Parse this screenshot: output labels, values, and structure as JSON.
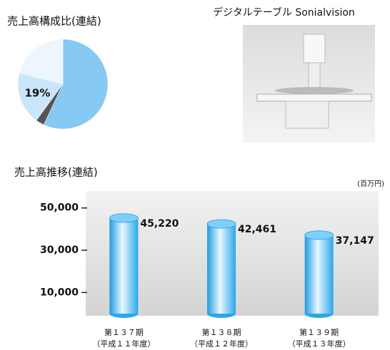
{
  "chart_data": [
    {
      "type": "pie",
      "title": "売上高構成比(連結)",
      "values": [
        57,
        3,
        19,
        21
      ],
      "value_labels": [
        null,
        null,
        "19%",
        null
      ],
      "colors": [
        "#86c9f2",
        "#555555",
        "#c9e6fa",
        "#eef6fd"
      ]
    },
    {
      "type": "bar",
      "title": "売上高推移(連結)",
      "unit": "(百万円)",
      "categories": [
        [
          "第１３７期",
          "（平成１１年度）"
        ],
        [
          "第１３８期",
          "（平成１２年度）"
        ],
        [
          "第１３９期",
          "（平成１３年度）"
        ]
      ],
      "values": [
        45220,
        42461,
        37147
      ],
      "value_labels": [
        "45,220",
        "42,461",
        "37,147"
      ],
      "color": "#3fb2ee",
      "ylim": [
        0,
        58000
      ],
      "yticks": [
        {
          "value": 10000,
          "label": "10,000"
        },
        {
          "value": 30000,
          "label": "30,000"
        },
        {
          "value": 50000,
          "label": "50,000"
        }
      ]
    }
  ],
  "image": {
    "caption": "デジタルテーブル Sonialvision"
  }
}
